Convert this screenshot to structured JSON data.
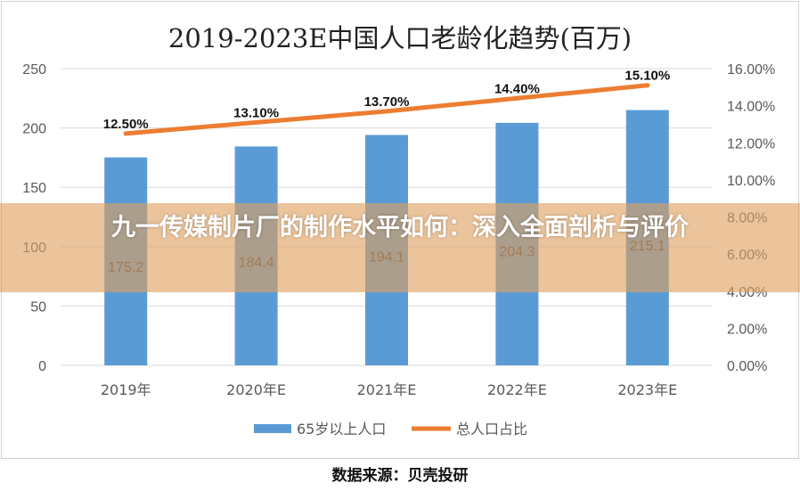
{
  "chart_data": {
    "type": "bar+line",
    "title": "2019-2023E中国人口老龄化趋势(百万)",
    "categories": [
      "2019年",
      "2020年E",
      "2021年E",
      "2022年E",
      "2023年E"
    ],
    "series": [
      {
        "name": "65岁以上人口",
        "type": "bar",
        "axis": "left",
        "values": [
          175.2,
          184.4,
          194.1,
          204.3,
          215.1
        ],
        "labels": [
          "175.2",
          "184.4",
          "194.1",
          "204.3",
          "215.1"
        ],
        "color": "#5b9bd5"
      },
      {
        "name": "总人口占比",
        "type": "line",
        "axis": "right",
        "values": [
          12.5,
          13.1,
          13.7,
          14.4,
          15.1
        ],
        "labels": [
          "12.50%",
          "13.10%",
          "13.70%",
          "14.40%",
          "15.10%"
        ],
        "color": "#ed7d31"
      }
    ],
    "left_axis": {
      "ylim": [
        0,
        250
      ],
      "ticks": [
        "0",
        "50",
        "100",
        "150",
        "200",
        "250"
      ]
    },
    "right_axis": {
      "ylim": [
        0,
        16
      ],
      "ticks": [
        "0.00%",
        "2.00%",
        "4.00%",
        "6.00%",
        "8.00%",
        "10.00%",
        "12.00%",
        "14.00%",
        "16.00%"
      ]
    },
    "grid": true,
    "legend": "bottom"
  },
  "overlay_title": "九一传媒制片厂的制作水平如何：深入全面剖析与评价",
  "source": "数据来源：贝壳投研"
}
